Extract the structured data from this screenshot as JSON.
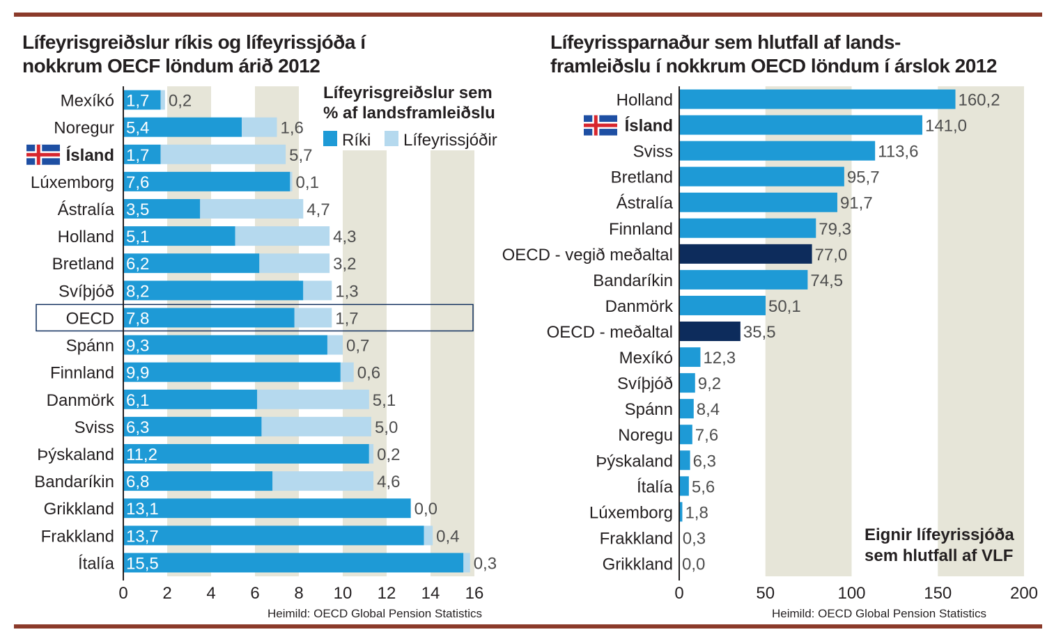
{
  "left": {
    "title_line1": "Lífeyrisgreiðslur ríkis og lífeyrissjóða í",
    "title_line2": "nokkrum OECF löndum árið 2012",
    "source": "Heimild: OECD Global Pension Statistics"
  },
  "right": {
    "title_line1": "Lífeyrissparnaður sem hlutfall af lands-",
    "title_line2": "framleiðslu í nokkrum OECD löndum í árslok 2012",
    "source": "Heimild: OECD Global Pension Statistics"
  },
  "chart_data": [
    {
      "type": "bar",
      "orientation": "horizontal",
      "stacked": true,
      "title": "Lífeyrisgreiðslur ríkis og lífeyrissjóða í nokkrum OECF löndum árið 2012",
      "legend_title": "Lífeyrisgreiðslur sem % af landsframleiðslu",
      "legend_placement": "top-right",
      "categories": [
        "Mexíkó",
        "Noregur",
        "Ísland",
        "Lúxemborg",
        "Ástralía",
        "Holland",
        "Bretland",
        "Svíþjóð",
        "OECD",
        "Spánn",
        "Finnland",
        "Danmörk",
        "Sviss",
        "Þýskaland",
        "Bandaríkin",
        "Grikkland",
        "Frakkland",
        "Ítalía"
      ],
      "display": {
        "riki": [
          "1,7",
          "5,4",
          "1,7",
          "7,6",
          "3,5",
          "5,1",
          "6,2",
          "8,2",
          "7,8",
          "9,3",
          "9,9",
          "6,1",
          "6,3",
          "11,2",
          "6,8",
          "13,1",
          "13,7",
          "15,5"
        ],
        "sjodir": [
          "0,2",
          "1,6",
          "5,7",
          "0,1",
          "4,7",
          "4,3",
          "3,2",
          "1,3",
          "1,7",
          "0,7",
          "0,6",
          "5,1",
          "5,0",
          "0,2",
          "4,6",
          "0,0",
          "0,4",
          "0,3"
        ]
      },
      "series": [
        {
          "name": "Ríki",
          "color": "#1e9ad6",
          "values": [
            1.7,
            5.4,
            1.7,
            7.6,
            3.5,
            5.1,
            6.2,
            8.2,
            7.8,
            9.3,
            9.9,
            6.1,
            6.3,
            11.2,
            6.8,
            13.1,
            13.7,
            15.5
          ]
        },
        {
          "name": "Lífeyrissjóðir",
          "color": "#b5d9ee",
          "values": [
            0.2,
            1.6,
            5.7,
            0.1,
            4.7,
            4.3,
            3.2,
            1.3,
            1.7,
            0.7,
            0.6,
            5.1,
            5.0,
            0.2,
            4.6,
            0.0,
            0.4,
            0.3
          ]
        }
      ],
      "highlight_bold": [
        "Ísland"
      ],
      "flag_on": [
        "Ísland"
      ],
      "boxed_category": "OECD",
      "xlim": [
        0,
        16
      ],
      "ticks": [
        "0",
        "2",
        "4",
        "6",
        "8",
        "10",
        "12",
        "14",
        "16"
      ],
      "tick_values": [
        0,
        2,
        4,
        6,
        8,
        10,
        12,
        14,
        16
      ],
      "grid_bands": [
        [
          2,
          4
        ],
        [
          6,
          8
        ],
        [
          10,
          12
        ],
        [
          14,
          16
        ]
      ],
      "band_color": "#e6e5d8"
    },
    {
      "type": "bar",
      "orientation": "horizontal",
      "title": "Lífeyrissparnaður sem hlutfall af landsframleiðslu í nokkrum OECD löndum í árslok 2012",
      "annotation_line1": "Eignir lífeyrissjóða",
      "annotation_line2": "sem hlutfall af VLF",
      "categories": [
        "Holland",
        "Ísland",
        "Sviss",
        "Bretland",
        "Ástralía",
        "Finnland",
        "OECD - vegið meðaltal",
        "Bandaríkin",
        "Danmörk",
        "OECD - meðaltal",
        "Mexíkó",
        "Svíþjóð",
        "Spánn",
        "Noregu",
        "Þýskaland",
        "Ítalía",
        "Lúxemborg",
        "Frakkland",
        "Grikkland"
      ],
      "display": [
        "160,2",
        "141,0",
        "113,6",
        "95,7",
        "91,7",
        "79,3",
        "77,0",
        "74,5",
        "50,1",
        "35,5",
        "12,3",
        "9,2",
        "8,4",
        "7,6",
        "6,3",
        "5,6",
        "1,8",
        "0,3",
        "0,0"
      ],
      "values": [
        160.2,
        141.0,
        113.6,
        95.7,
        91.7,
        79.3,
        77.0,
        74.5,
        50.1,
        35.5,
        12.3,
        9.2,
        8.4,
        7.6,
        6.3,
        5.6,
        1.8,
        0.3,
        0.0
      ],
      "colors": {
        "default": "#1e9ad6",
        "oecd": "#0d2c5c"
      },
      "dark_categories": [
        "OECD - vegið meðaltal",
        "OECD - meðaltal"
      ],
      "highlight_bold": [
        "Ísland"
      ],
      "flag_on": [
        "Ísland"
      ],
      "xlim": [
        0,
        200
      ],
      "ticks": [
        "0",
        "50",
        "100",
        "150",
        "200"
      ],
      "tick_values": [
        0,
        50,
        100,
        150,
        200
      ],
      "grid_bands": [
        [
          50,
          100
        ],
        [
          150,
          200
        ]
      ],
      "band_color": "#e6e5d8"
    }
  ]
}
